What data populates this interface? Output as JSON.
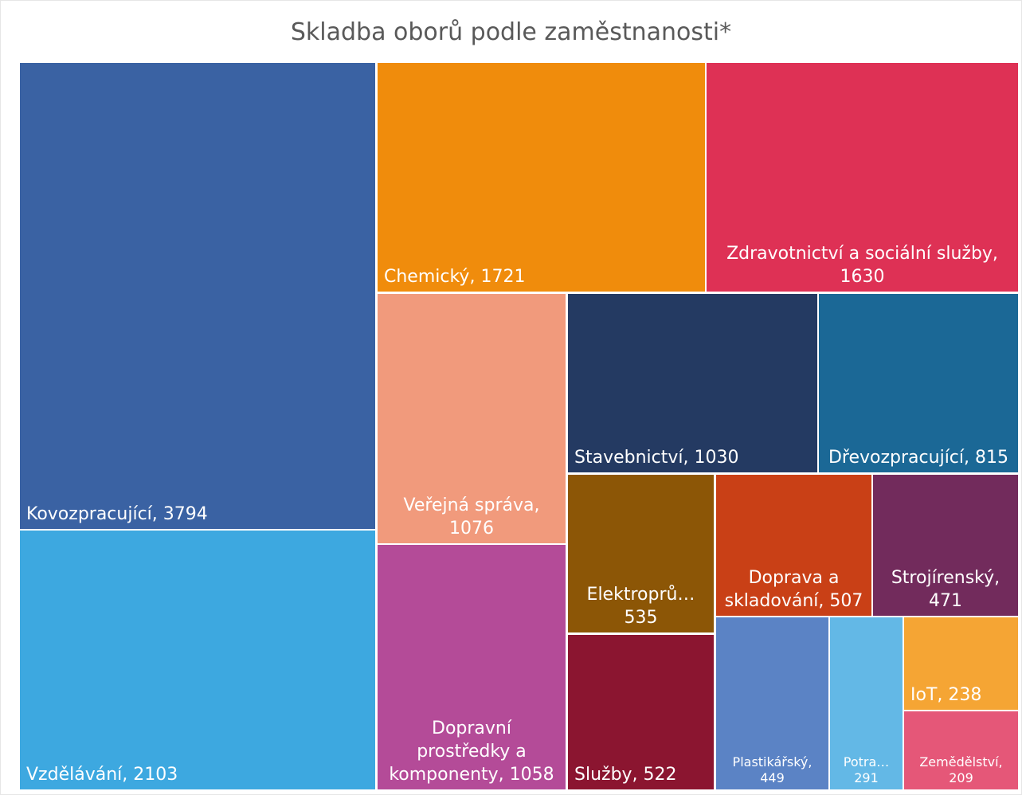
{
  "chart_data": {
    "type": "treemap",
    "title": "Skladba oborů podle zaměstnanosti*",
    "categories": [
      "Kovozpracující,",
      "Vzdělávání,",
      "Chemický,",
      "Zdravotnictví a sociální služby,",
      "Veřejná správa,",
      "Dopravní prostředky a komponenty,",
      "Stavebnictví,",
      "Dřevozpracující,",
      "Elektroprů…",
      "Služby,",
      "Doprava a skladování,",
      "Strojírenský,",
      "Plastikářský,",
      "Potra…",
      "IoT,",
      "Zemědělství,"
    ],
    "values": [
      3794,
      2103,
      1721,
      1630,
      1076,
      1058,
      1030,
      815,
      535,
      522,
      507,
      471,
      449,
      291,
      238,
      209
    ],
    "colors": [
      "#3a62a3",
      "#3da8e0",
      "#f08c0c",
      "#de3155",
      "#f19a7c",
      "#b44b98",
      "#243a62",
      "#1b6896",
      "#8c5606",
      "#8b1530",
      "#c94016",
      "#722b5c",
      "#5b83c5",
      "#63b8e6",
      "#f5a534",
      "#e55778"
    ]
  }
}
